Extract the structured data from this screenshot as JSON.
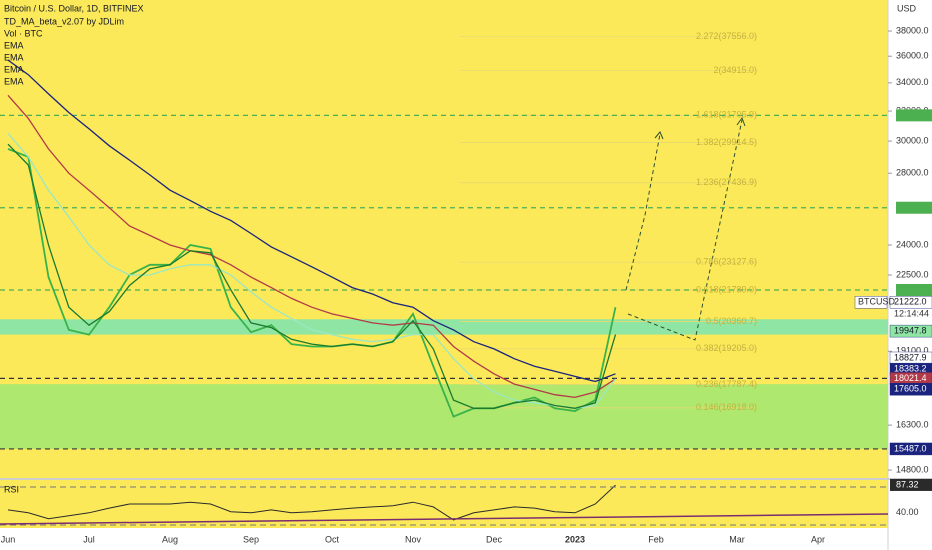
{
  "chart_data": {
    "type": "line",
    "title": "Bitcoin / U.S. Dollar, 1D, BITFINEX",
    "indicators": [
      "TD_MA_beta_v2.07 by JDLim",
      "Vol · BTC"
    ],
    "currency": "USD",
    "log_scale": true,
    "categories": [
      "Jun",
      null,
      null,
      null,
      "Jul",
      null,
      null,
      null,
      "Aug",
      null,
      null,
      null,
      "Sep",
      null,
      null,
      null,
      "Oct",
      null,
      null,
      null,
      "Nov",
      null,
      null,
      null,
      "Dec",
      null,
      null,
      null,
      "2023",
      null,
      null,
      null,
      "Feb",
      null,
      null,
      null,
      "Mar",
      null,
      null,
      null,
      "Apr"
    ],
    "series": [
      {
        "name": "BTCUSD",
        "color": "#38b24a",
        "values": [
          29500,
          29000,
          22400,
          20000,
          19800,
          21000,
          22500,
          23000,
          23000,
          24000,
          23800,
          21000,
          19900,
          20200,
          19400,
          19300,
          19300,
          19400,
          19300,
          19500,
          20700,
          18500,
          16600,
          16900,
          16900,
          17100,
          17300,
          16900,
          16800,
          17200,
          21000,
          null,
          null,
          null,
          null,
          null,
          null,
          null,
          null,
          null,
          null
        ]
      },
      {
        "name": "EMA",
        "color": "#1a237e",
        "values": [
          35700,
          34600,
          33200,
          31900,
          30800,
          29700,
          28800,
          27900,
          27000,
          26400,
          25800,
          25300,
          24600,
          23900,
          23400,
          22900,
          22400,
          21900,
          21600,
          21200,
          21000,
          20400,
          20000,
          19500,
          19200,
          18800,
          18500,
          18300,
          18100,
          17900,
          18200,
          null,
          null,
          null,
          null,
          null,
          null,
          null,
          null,
          null,
          null
        ]
      },
      {
        "name": "EMA",
        "color": "#b23a48",
        "values": [
          33100,
          31500,
          29500,
          28000,
          27000,
          26000,
          25000,
          24500,
          24000,
          23700,
          23500,
          23000,
          22400,
          21900,
          21400,
          21000,
          20700,
          20500,
          20300,
          20200,
          20300,
          20200,
          19300,
          18700,
          18200,
          17800,
          17600,
          17400,
          17300,
          17500,
          18000,
          null,
          null,
          null,
          null,
          null,
          null,
          null,
          null,
          null,
          null
        ]
      },
      {
        "name": "EMA",
        "color": "#9be7c4",
        "values": [
          30500,
          29000,
          27000,
          25500,
          24000,
          23000,
          22500,
          22500,
          22800,
          23000,
          23000,
          22500,
          21700,
          21000,
          20500,
          20000,
          19800,
          19600,
          19500,
          19600,
          19800,
          19800,
          18800,
          18000,
          17500,
          17200,
          17100,
          17000,
          16900,
          17000,
          18000,
          null,
          null,
          null,
          null,
          null,
          null,
          null,
          null,
          null,
          null
        ]
      },
      {
        "name": "EMA",
        "color": "#1b7a2c",
        "values": [
          29800,
          28500,
          24000,
          21000,
          20200,
          20800,
          22000,
          22800,
          23000,
          23700,
          23600,
          21800,
          20300,
          20100,
          19600,
          19400,
          19300,
          19400,
          19300,
          19500,
          20400,
          19200,
          17200,
          16900,
          16900,
          17100,
          17200,
          17000,
          16900,
          17100,
          19800,
          null,
          null,
          null,
          null,
          null,
          null,
          null,
          null,
          null,
          null
        ]
      }
    ],
    "ylim": [
      14550,
      40620
    ],
    "yticks": [
      {
        "value": 38000,
        "label": "38000.0"
      },
      {
        "value": 36000,
        "label": "36000.0"
      },
      {
        "value": 34000,
        "label": "34000.0"
      },
      {
        "value": 32000,
        "label": "32000.0"
      },
      {
        "value": 30000,
        "label": "30000.0"
      },
      {
        "value": 28000,
        "label": "28000.0"
      },
      {
        "value": 24000,
        "label": "24000.0"
      },
      {
        "value": 22500,
        "label": "22500.0"
      },
      {
        "value": 19100,
        "label": "19100.0"
      },
      {
        "value": 16300,
        "label": "16300.0"
      },
      {
        "value": 14800,
        "label": "14800.0"
      }
    ],
    "zones": [
      {
        "range": [
          19800,
          20460
        ],
        "color": "#8fe6a4"
      },
      {
        "range": [
          15487,
          17800
        ],
        "color": "#aee86e"
      }
    ],
    "levels": [
      {
        "value": 31705.9,
        "color": "#4caf50"
      },
      {
        "value": 26000,
        "color": "#4caf50"
      },
      {
        "value": 21789,
        "color": "#4caf50"
      },
      {
        "value": 18021.4,
        "color": "#333333"
      },
      {
        "value": 15487,
        "color": "#333333"
      }
    ],
    "fib_levels": [
      {
        "value": 37556,
        "label": "2.272(37556.0)"
      },
      {
        "value": 34915,
        "label": "2(34915.0)"
      },
      {
        "value": 31705.9,
        "label": "1.618(31705.9)"
      },
      {
        "value": 29914.5,
        "label": "1.382(29914.5)"
      },
      {
        "value": 27436.9,
        "label": "1.236(27436.9)"
      },
      {
        "value": 23127.6,
        "label": "0.786(23127.6)"
      },
      {
        "value": 21789,
        "label": "0.618(21789.0)"
      },
      {
        "value": 20360.7,
        "label": "0.5(20360.7)"
      },
      {
        "value": 19205,
        "label": "0.382(19205.0)"
      },
      {
        "value": 17787.4,
        "label": "0.236(17787.4)"
      },
      {
        "value": 16918,
        "label": "0.146(16918.0)"
      }
    ],
    "price_tags": [
      {
        "value": 21222,
        "label": "21222.0",
        "color": "#ffffff",
        "text_color": "#131722"
      },
      {
        "value": 19947.8,
        "label": "19947.8",
        "color": "#8fe6a4",
        "text_color": "#131722"
      },
      {
        "value": 18827.9,
        "label": "18827.9",
        "color": "#ffffff",
        "text_color": "#131722"
      },
      {
        "value": 18383.2,
        "label": "18383.2",
        "color": "#1a237e",
        "text_color": "#ffffff"
      },
      {
        "value": 18021.4,
        "label": "18021.4",
        "color": "#b23a48",
        "text_color": "#ffffff"
      },
      {
        "value": 17605,
        "label": "17605.0",
        "color": "#1a237e",
        "text_color": "#ffffff"
      },
      {
        "value": 15487,
        "label": "15487.0",
        "color": "#1a237e",
        "text_color": "#ffffff"
      }
    ],
    "countdown": "12:14:44",
    "rsi": {
      "label": "RSI",
      "color": "#2a2a2a",
      "ylim": [
        16,
        94
      ],
      "yticks": [
        {
          "value": 87.32,
          "label": "87.32"
        },
        {
          "value": 40,
          "label": "40.00"
        }
      ],
      "values": [
        45,
        40,
        30,
        35,
        40,
        48,
        55,
        55,
        55,
        58,
        55,
        42,
        40,
        45,
        40,
        42,
        45,
        48,
        50,
        52,
        58,
        50,
        28,
        40,
        45,
        50,
        48,
        42,
        40,
        55,
        87,
        null,
        null,
        null,
        null,
        null,
        null,
        null,
        null,
        null,
        null
      ]
    }
  }
}
